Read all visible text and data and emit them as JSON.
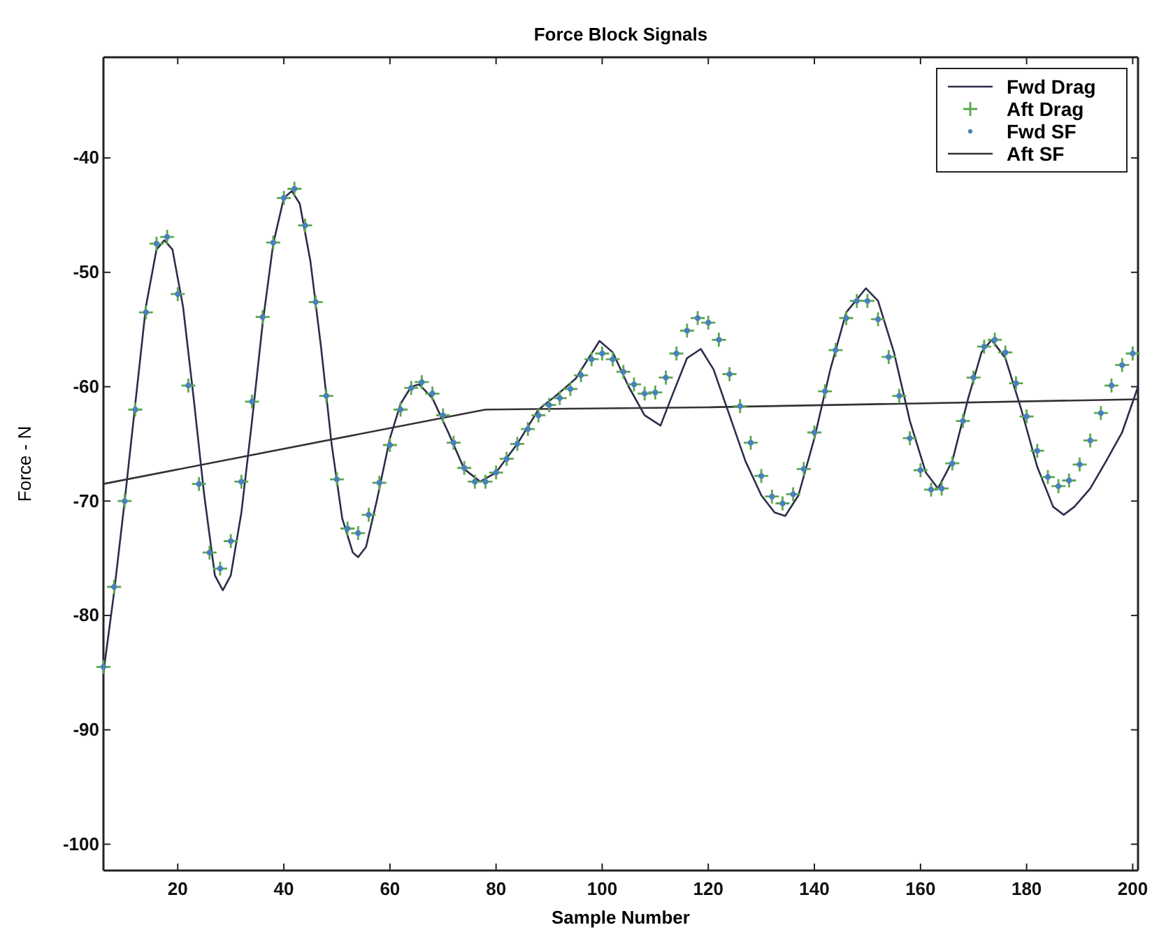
{
  "chart_data": {
    "type": "line",
    "title": "Force Block Signals",
    "xlabel": "Sample Number",
    "ylabel": "Force - N",
    "xlim": [
      6,
      201
    ],
    "xticks": [
      20,
      40,
      60,
      80,
      100,
      120,
      140,
      160,
      180,
      200
    ],
    "ylim": [
      -102.3,
      -31.2
    ],
    "yticks": [
      -100,
      -90,
      -80,
      -70,
      -60,
      -50,
      -40
    ],
    "grid": false,
    "legend": "top right",
    "series": [
      {
        "name": "Fwd Drag",
        "color": "#2b2d4a",
        "line_style": "solid",
        "x": [
          6,
          8,
          10,
          12,
          14,
          16,
          17.5,
          19,
          21,
          23,
          25,
          27,
          28.5,
          30,
          32,
          34,
          36,
          38,
          40,
          41.5,
          43,
          45,
          47,
          49,
          51,
          53,
          54,
          55.5,
          57.5,
          60,
          62,
          64,
          65.5,
          68,
          71,
          74,
          77,
          80,
          84,
          88,
          91.5,
          95,
          99.5,
          102,
          105,
          108,
          111,
          113,
          116,
          118.6,
          121,
          124,
          127,
          130,
          132.5,
          134.5,
          137,
          140,
          143,
          146,
          149.7,
          152,
          155,
          158,
          161,
          163.3,
          166,
          169,
          171.5,
          173.4,
          176,
          179,
          182,
          185,
          187,
          189,
          192,
          195,
          198,
          201
        ],
        "values": [
          -85,
          -78,
          -70,
          -61.5,
          -53,
          -48,
          -47.2,
          -48,
          -53,
          -61,
          -69.5,
          -76.5,
          -77.8,
          -76.5,
          -71,
          -63,
          -54.5,
          -47.5,
          -43.5,
          -42.9,
          -44,
          -49,
          -56.5,
          -65,
          -71.5,
          -74.5,
          -74.9,
          -74,
          -70,
          -64.5,
          -61.5,
          -60,
          -59.8,
          -61,
          -64,
          -67.2,
          -68.3,
          -67.5,
          -65,
          -62,
          -60.7,
          -59.3,
          -56,
          -57,
          -60,
          -62.5,
          -63.4,
          -61,
          -57.5,
          -56.7,
          -58.5,
          -62.5,
          -66.5,
          -69.5,
          -71,
          -71.3,
          -69.5,
          -64.5,
          -58.5,
          -53.5,
          -51.4,
          -52.5,
          -57,
          -63,
          -67.5,
          -68.9,
          -66.5,
          -61,
          -57,
          -55.9,
          -57.5,
          -62,
          -67,
          -70.5,
          -71.2,
          -70.5,
          -68.9,
          -66.5,
          -64,
          -60
        ]
      },
      {
        "name": "Aft Drag",
        "type": "scatter",
        "marker": "cross",
        "color": "#5aa84a",
        "x": [
          6,
          8,
          10,
          12,
          14,
          16,
          18,
          20,
          22,
          24,
          26,
          28,
          30,
          32,
          34,
          36,
          38,
          40,
          42,
          44,
          46,
          48,
          50,
          52,
          54,
          56,
          58,
          60,
          62,
          64,
          66,
          68,
          70,
          72,
          74,
          76,
          78,
          80,
          82,
          84,
          86,
          88,
          90,
          92,
          94,
          96,
          98,
          100,
          102,
          104,
          106,
          108,
          110,
          112,
          114,
          116,
          118,
          120,
          122,
          124,
          126,
          128,
          130,
          132,
          134,
          136,
          138,
          140,
          142,
          144,
          146,
          148,
          150,
          152,
          154,
          156,
          158,
          160,
          162,
          164,
          166,
          168,
          170,
          172,
          174,
          176,
          178,
          180,
          182,
          184,
          186,
          188,
          190,
          192,
          194,
          196,
          198,
          200
        ],
        "values": [
          -84.5,
          -77.5,
          -70,
          -62,
          -53.5,
          -47.5,
          -46.9,
          -51.9,
          -59.9,
          -68.5,
          -74.5,
          -75.9,
          -73.5,
          -68.3,
          -61.3,
          -53.9,
          -47.4,
          -43.5,
          -42.7,
          -45.9,
          -52.6,
          -60.8,
          -68.1,
          -72.4,
          -72.8,
          -71.2,
          -68.4,
          -65.1,
          -62,
          -60.1,
          -59.6,
          -60.6,
          -62.5,
          -64.9,
          -67.1,
          -68.3,
          -68.3,
          -67.5,
          -66.3,
          -65,
          -63.7,
          -62.5,
          -61.6,
          -61,
          -60.2,
          -59,
          -57.6,
          -57.1,
          -57.6,
          -58.7,
          -59.8,
          -60.6,
          -60.5,
          -59.2,
          -57.1,
          -55.1,
          -54,
          -54.4,
          -55.9,
          -58.9,
          -61.7,
          -64.9,
          -67.8,
          -69.6,
          -70.2,
          -69.4,
          -67.2,
          -64,
          -60.4,
          -56.8,
          -54,
          -52.5,
          -52.5,
          -54.1,
          -57.4,
          -60.8,
          -64.5,
          -67.3,
          -69,
          -68.9,
          -66.7,
          -63,
          -59.2,
          -56.5,
          -55.9,
          -57,
          -59.7,
          -62.6,
          -65.6,
          -67.9,
          -68.7,
          -68.2,
          -66.8,
          -64.7,
          -62.3,
          -59.9,
          -58.1,
          -57.1
        ]
      },
      {
        "name": "Fwd SF",
        "type": "scatter",
        "marker": "circle",
        "color": "#4a7fc0",
        "x": [
          6,
          8,
          10,
          12,
          14,
          16,
          18,
          20,
          22,
          24,
          26,
          28,
          30,
          32,
          34,
          36,
          38,
          40,
          42,
          44,
          46,
          48,
          50,
          52,
          54,
          56,
          58,
          60,
          62,
          64,
          66,
          68,
          70,
          72,
          74,
          76,
          78,
          80,
          82,
          84,
          86,
          88,
          90,
          92,
          94,
          96,
          98,
          100,
          102,
          104,
          106,
          108,
          110,
          112,
          114,
          116,
          118,
          120,
          122,
          124,
          126,
          128,
          130,
          132,
          134,
          136,
          138,
          140,
          142,
          144,
          146,
          148,
          150,
          152,
          154,
          156,
          158,
          160,
          162,
          164,
          166,
          168,
          170,
          172,
          174,
          176,
          178,
          180,
          182,
          184,
          186,
          188,
          190,
          192,
          194,
          196,
          198,
          200
        ],
        "values": [
          -84.5,
          -77.5,
          -70,
          -62,
          -53.5,
          -47.5,
          -46.9,
          -51.9,
          -59.9,
          -68.5,
          -74.5,
          -75.9,
          -73.5,
          -68.3,
          -61.3,
          -53.9,
          -47.4,
          -43.5,
          -42.7,
          -45.9,
          -52.6,
          -60.8,
          -68.1,
          -72.4,
          -72.8,
          -71.2,
          -68.4,
          -65.1,
          -62,
          -60.1,
          -59.6,
          -60.6,
          -62.5,
          -64.9,
          -67.1,
          -68.3,
          -68.3,
          -67.5,
          -66.3,
          -65,
          -63.7,
          -62.5,
          -61.6,
          -61,
          -60.2,
          -59,
          -57.6,
          -57.1,
          -57.6,
          -58.7,
          -59.8,
          -60.6,
          -60.5,
          -59.2,
          -57.1,
          -55.1,
          -54,
          -54.4,
          -55.9,
          -58.9,
          -61.7,
          -64.9,
          -67.8,
          -69.6,
          -70.2,
          -69.4,
          -67.2,
          -64,
          -60.4,
          -56.8,
          -54,
          -52.5,
          -52.5,
          -54.1,
          -57.4,
          -60.8,
          -64.5,
          -67.3,
          -69,
          -68.9,
          -66.7,
          -63,
          -59.2,
          -56.5,
          -55.9,
          -57,
          -59.7,
          -62.6,
          -65.6,
          -67.9,
          -68.7,
          -68.2,
          -66.8,
          -64.7,
          -62.3,
          -59.9,
          -58.1,
          -57.1
        ]
      },
      {
        "name": "Aft SF",
        "color": "#333333",
        "line_style": "solid",
        "x": [
          6,
          78,
          120,
          201
        ],
        "values": [
          -68.5,
          -62,
          -61.8,
          -61.1
        ]
      }
    ]
  }
}
